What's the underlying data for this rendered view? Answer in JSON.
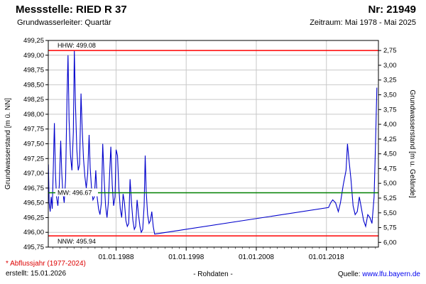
{
  "header": {
    "title": "Messstelle: RIED R 37",
    "number": "Nr: 21949",
    "aquifer": "Grundwasserleiter: Quartär",
    "period": "Zeitraum: Mai 1978 - Mai 2025"
  },
  "chart_data": {
    "type": "line",
    "title": "",
    "colors": {
      "grid": "#c9c9c9",
      "frame": "#000000",
      "series": "#0000cc"
    },
    "y_left": {
      "label": "Grundwasserstand [m ü. NN]",
      "min": 495.75,
      "max": 499.25,
      "tick_step": 0.25,
      "ticks": [
        "499,25",
        "499,00",
        "498,75",
        "498,50",
        "498,25",
        "498,00",
        "497,75",
        "497,50",
        "497,25",
        "497,00",
        "496,75",
        "496,50",
        "496,25",
        "496,00",
        "495,75"
      ]
    },
    "y_right": {
      "label": "Grundwasserstand [m u. Gelände]",
      "ground_level": 501.83,
      "ticks": [
        "2,75",
        "3,00",
        "3,25",
        "3,50",
        "3,75",
        "4,00",
        "4,25",
        "4,50",
        "4,75",
        "5,00",
        "5,25",
        "5,50",
        "5,75",
        "6,00"
      ]
    },
    "x": {
      "min": 1978.33,
      "max": 2025.42,
      "ticks": [
        {
          "label": "01.01.1988",
          "year": 1988.0
        },
        {
          "label": "01.01.1998",
          "year": 1998.0
        },
        {
          "label": "01.01.2008",
          "year": 2008.0
        },
        {
          "label": "01.01.2018",
          "year": 2018.0
        }
      ]
    },
    "reference_lines": [
      {
        "name": "HHW",
        "label": "HHW: 499.08",
        "value": 499.08,
        "color": "#ff0000",
        "placement": "above"
      },
      {
        "name": "MW",
        "label": "MW: 496.67",
        "value": 496.67,
        "color": "#008000",
        "placement": "on"
      },
      {
        "name": "NNW",
        "label": "NNW: 495.94",
        "value": 495.94,
        "color": "#ff0000",
        "placement": "below"
      }
    ],
    "series": [
      {
        "name": "Rohdaten",
        "color": "#0000cc",
        "points": [
          [
            1978.35,
            497.15
          ],
          [
            1978.45,
            496.5
          ],
          [
            1978.6,
            496.35
          ],
          [
            1978.75,
            496.6
          ],
          [
            1978.9,
            496.4
          ],
          [
            1979.05,
            497.1
          ],
          [
            1979.2,
            497.85
          ],
          [
            1979.35,
            497.0
          ],
          [
            1979.5,
            496.6
          ],
          [
            1979.7,
            496.45
          ],
          [
            1979.9,
            496.8
          ],
          [
            1980.1,
            497.55
          ],
          [
            1980.25,
            497.0
          ],
          [
            1980.4,
            496.7
          ],
          [
            1980.6,
            496.5
          ],
          [
            1980.8,
            496.9
          ],
          [
            1981.0,
            498.3
          ],
          [
            1981.15,
            499.0
          ],
          [
            1981.3,
            497.9
          ],
          [
            1981.5,
            497.3
          ],
          [
            1981.7,
            497.05
          ],
          [
            1981.9,
            497.7
          ],
          [
            1982.05,
            499.08
          ],
          [
            1982.2,
            498.2
          ],
          [
            1982.4,
            497.4
          ],
          [
            1982.6,
            497.05
          ],
          [
            1982.8,
            497.15
          ],
          [
            1983.0,
            498.35
          ],
          [
            1983.15,
            497.8
          ],
          [
            1983.35,
            497.25
          ],
          [
            1983.55,
            496.95
          ],
          [
            1983.75,
            496.75
          ],
          [
            1983.95,
            497.0
          ],
          [
            1984.15,
            497.65
          ],
          [
            1984.3,
            497.1
          ],
          [
            1984.5,
            496.75
          ],
          [
            1984.7,
            496.55
          ],
          [
            1984.9,
            496.6
          ],
          [
            1985.1,
            497.05
          ],
          [
            1985.3,
            496.6
          ],
          [
            1985.5,
            496.4
          ],
          [
            1985.7,
            496.3
          ],
          [
            1985.9,
            496.5
          ],
          [
            1986.1,
            497.5
          ],
          [
            1986.3,
            496.9
          ],
          [
            1986.5,
            496.45
          ],
          [
            1986.7,
            496.25
          ],
          [
            1986.9,
            496.5
          ],
          [
            1987.1,
            497.05
          ],
          [
            1987.25,
            497.45
          ],
          [
            1987.45,
            496.8
          ],
          [
            1987.65,
            496.45
          ],
          [
            1987.85,
            496.6
          ],
          [
            1988.0,
            497.4
          ],
          [
            1988.2,
            497.3
          ],
          [
            1988.4,
            496.75
          ],
          [
            1988.6,
            496.4
          ],
          [
            1988.8,
            496.25
          ],
          [
            1989.0,
            496.65
          ],
          [
            1989.2,
            496.5
          ],
          [
            1989.4,
            496.2
          ],
          [
            1989.6,
            496.1
          ],
          [
            1989.8,
            496.15
          ],
          [
            1990.0,
            496.9
          ],
          [
            1990.2,
            496.5
          ],
          [
            1990.4,
            496.2
          ],
          [
            1990.6,
            496.05
          ],
          [
            1990.8,
            496.1
          ],
          [
            1991.0,
            496.55
          ],
          [
            1991.2,
            496.3
          ],
          [
            1991.4,
            496.1
          ],
          [
            1991.6,
            496.0
          ],
          [
            1991.8,
            496.05
          ],
          [
            1992.0,
            496.45
          ],
          [
            1992.15,
            497.3
          ],
          [
            1992.3,
            496.7
          ],
          [
            1992.5,
            496.3
          ],
          [
            1992.7,
            496.15
          ],
          [
            1992.9,
            496.2
          ],
          [
            1993.1,
            496.35
          ],
          [
            1993.3,
            496.1
          ],
          [
            1993.5,
            495.97
          ],
          [
            2018.3,
            496.42
          ],
          [
            2018.6,
            496.5
          ],
          [
            2018.9,
            496.55
          ],
          [
            2019.3,
            496.5
          ],
          [
            2019.7,
            496.35
          ],
          [
            2020.0,
            496.5
          ],
          [
            2020.4,
            496.8
          ],
          [
            2020.8,
            497.05
          ],
          [
            2021.0,
            497.5
          ],
          [
            2021.2,
            497.25
          ],
          [
            2021.5,
            496.9
          ],
          [
            2021.8,
            496.45
          ],
          [
            2022.1,
            496.3
          ],
          [
            2022.4,
            496.35
          ],
          [
            2022.7,
            496.6
          ],
          [
            2023.0,
            496.4
          ],
          [
            2023.3,
            496.2
          ],
          [
            2023.6,
            496.1
          ],
          [
            2023.9,
            496.3
          ],
          [
            2024.2,
            496.25
          ],
          [
            2024.5,
            496.15
          ],
          [
            2024.8,
            496.6
          ],
          [
            2025.0,
            497.5
          ],
          [
            2025.2,
            498.45
          ]
        ]
      }
    ]
  },
  "footer": {
    "note": "* Abflussjahr (1977-2024)",
    "created": "erstellt:  15.01.2026",
    "center": "- Rohdaten -",
    "source_prefix": "Quelle:",
    "source_link": "www.lfu.bayern.de"
  }
}
